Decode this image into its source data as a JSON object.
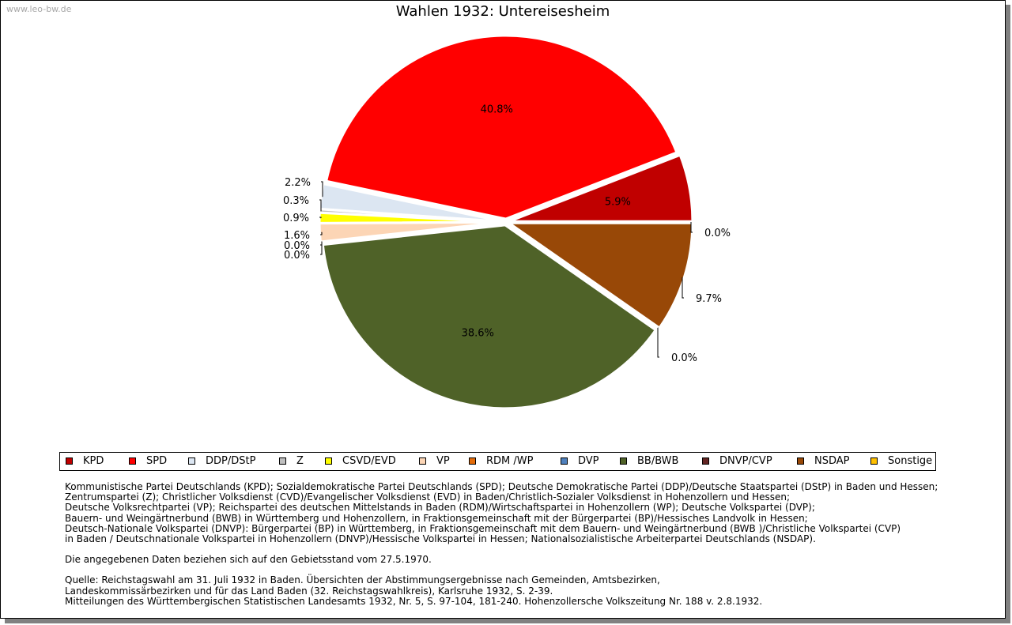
{
  "watermark": "www.leo-bw.de",
  "chart_data": {
    "type": "pie",
    "title": "Wahlen 1932: Untereisesheim",
    "slices": [
      {
        "name": "KPD",
        "value": 5.9,
        "label": "5.9%",
        "color": "#c00000"
      },
      {
        "name": "SPD",
        "value": 40.8,
        "label": "40.8%",
        "color": "#ff0000"
      },
      {
        "name": "DDP/DStP",
        "value": 2.2,
        "label": "2.2%",
        "color": "#dce6f2"
      },
      {
        "name": "Z",
        "value": 0.3,
        "label": "0.3%",
        "color": "#bfbfbf"
      },
      {
        "name": "CSVD/EVD",
        "value": 0.9,
        "label": "0.9%",
        "color": "#ffff00"
      },
      {
        "name": "VP",
        "value": 1.6,
        "label": "1.6%",
        "color": "#fcd5b5"
      },
      {
        "name": "RDM /WP",
        "value": 0.0,
        "label": "0.0%",
        "color": "#e46c0a"
      },
      {
        "name": "DVP",
        "value": 0.0,
        "label": "0.0%",
        "color": "#4f81bd"
      },
      {
        "name": "BB/BWB",
        "value": 38.6,
        "label": "38.6%",
        "color": "#4f6228"
      },
      {
        "name": "DNVP/CVP",
        "value": 0.0,
        "label": "0.0%",
        "color": "#632523"
      },
      {
        "name": "NSDAP",
        "value": 9.7,
        "label": "9.7%",
        "color": "#984807"
      },
      {
        "name": "Sonstige",
        "value": 0.0,
        "label": "0.0%",
        "color": "#ffc000"
      }
    ],
    "legend_position": "bottom"
  },
  "footnotes": {
    "parties": [
      "Kommunistische Partei Deutschlands (KPD); Sozialdemokratische Partei Deutschlands (SPD); Deutsche Demokratische Partei (DDP)/Deutsche Staatspartei (DStP) in Baden und Hessen;",
      "Zentrumspartei (Z); Christlicher Volksdienst (CVD)/Evangelischer Volksdienst (EVD) in Baden/Christlich-Sozialer Volksdienst in Hohenzollern und Hessen;",
      "Deutsche Volksrechtpartei (VP); Reichspartei des deutschen Mittelstands in Baden (RDM)/Wirtschaftspartei in Hohenzollern (WP); Deutsche Volkspartei (DVP);",
      "Bauern- und Weingärtnerbund (BWB) in Württemberg und Hohenzollern, in Fraktionsgemeinschaft mit der Bürgerpartei (BP)/Hessisches Landvolk in Hessen;",
      "Deutsch-Nationale Volkspartei (DNVP): Bürgerpartei (BP) in Württemberg, in Fraktionsgemeinschaft mit dem Bauern- und Weingärtnerbund (BWB )/Christliche Volkspartei (CVP)",
      "in Baden / Deutschnationale Volkspartei in Hohenzollern (DNVP)/Hessische Volkspartei in Hessen; Nationalsozialistische Arbeiterpartei Deutschlands (NSDAP)."
    ],
    "territory": "Die angegebenen Daten beziehen sich auf den Gebietsstand vom 27.5.1970.",
    "source": [
      "Quelle: Reichstagswahl am 31. Juli 1932 in Baden. Übersichten der Abstimmungsergebnisse nach Gemeinden, Amtsbezirken,",
      "Landeskommissärbezirken und für das Land Baden (32. Reichstagswahlkreis), Karlsruhe 1932, S. 2-39.",
      "Mitteilungen des Württembergischen Statistischen Landesamts 1932, Nr. 5, S. 97-104, 181-240. Hohenzollersche Volkszeitung Nr. 188 v. 2.8.1932."
    ]
  }
}
